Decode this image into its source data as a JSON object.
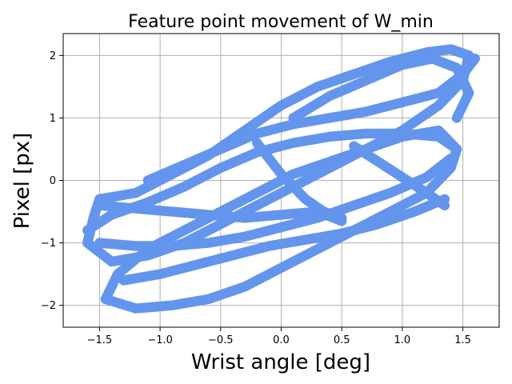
{
  "chart_data": {
    "type": "scatter",
    "title": "Feature point movement of W_min",
    "xlabel": "Wrist angle [deg]",
    "ylabel": "Pixel [px]",
    "xlim": [
      -1.8,
      1.8
    ],
    "ylim": [
      -2.35,
      2.35
    ],
    "x_ticks": [
      -1.5,
      -1.0,
      -0.5,
      0.0,
      0.5,
      1.0,
      1.5
    ],
    "x_tick_labels": [
      "−1.5",
      "−1.0",
      "−0.5",
      "0.0",
      "0.5",
      "1.0",
      "1.5"
    ],
    "y_ticks": [
      -2,
      -1,
      0,
      1,
      2
    ],
    "y_tick_labels": [
      "−2",
      "−1",
      "0",
      "1",
      "2"
    ],
    "grid": true,
    "marker_color": "#6495ED",
    "series": [
      {
        "values": [
          [
            -1.5,
            -0.3
          ],
          [
            -1.2,
            -0.2
          ],
          [
            -0.9,
            0.1
          ],
          [
            -0.6,
            0.4
          ],
          [
            -0.3,
            0.8
          ],
          [
            0.0,
            1.2
          ],
          [
            0.3,
            1.5
          ],
          [
            0.6,
            1.7
          ],
          [
            0.9,
            1.9
          ],
          [
            1.2,
            2.05
          ],
          [
            1.4,
            2.1
          ],
          [
            1.55,
            2.0
          ],
          [
            1.5,
            1.6
          ],
          [
            1.3,
            1.2
          ],
          [
            1.0,
            0.8
          ],
          [
            0.7,
            0.5
          ],
          [
            0.4,
            0.2
          ],
          [
            0.1,
            -0.1
          ],
          [
            -0.2,
            -0.4
          ],
          [
            -0.5,
            -0.7
          ],
          [
            -0.8,
            -1.0
          ],
          [
            -1.1,
            -1.2
          ],
          [
            -1.4,
            -1.3
          ],
          [
            -1.6,
            -1.0
          ],
          [
            -1.55,
            -0.6
          ],
          [
            -1.5,
            -0.3
          ]
        ]
      },
      {
        "values": [
          [
            -1.45,
            -1.9
          ],
          [
            -1.2,
            -2.05
          ],
          [
            -0.9,
            -2.0
          ],
          [
            -0.6,
            -1.9
          ],
          [
            -0.3,
            -1.7
          ],
          [
            0.0,
            -1.4
          ],
          [
            0.3,
            -1.1
          ],
          [
            0.6,
            -0.8
          ],
          [
            0.9,
            -0.5
          ],
          [
            1.2,
            -0.2
          ],
          [
            1.4,
            0.2
          ],
          [
            1.45,
            0.5
          ],
          [
            1.3,
            0.8
          ],
          [
            1.0,
            0.7
          ],
          [
            0.7,
            0.5
          ],
          [
            0.4,
            0.3
          ],
          [
            0.1,
            0.1
          ],
          [
            -0.2,
            -0.2
          ],
          [
            -0.5,
            -0.5
          ],
          [
            -0.8,
            -0.8
          ],
          [
            -1.1,
            -1.1
          ],
          [
            -1.35,
            -1.5
          ],
          [
            -1.45,
            -1.9
          ]
        ]
      },
      {
        "values": [
          [
            -1.6,
            -0.8
          ],
          [
            -1.4,
            -0.55
          ],
          [
            -1.1,
            -0.35
          ],
          [
            -0.8,
            -0.1
          ],
          [
            -0.5,
            0.2
          ],
          [
            -0.2,
            0.45
          ],
          [
            0.1,
            0.6
          ],
          [
            0.4,
            0.7
          ],
          [
            0.7,
            0.75
          ],
          [
            1.0,
            0.75
          ],
          [
            1.3,
            0.7
          ],
          [
            1.45,
            0.5
          ]
        ]
      },
      {
        "values": [
          [
            -1.5,
            -1.0
          ],
          [
            -1.2,
            -1.05
          ],
          [
            -0.9,
            -1.05
          ],
          [
            -0.6,
            -1.0
          ],
          [
            -0.3,
            -0.9
          ],
          [
            0.0,
            -0.75
          ],
          [
            0.3,
            -0.6
          ],
          [
            0.6,
            -0.4
          ],
          [
            0.9,
            -0.2
          ],
          [
            1.2,
            0.05
          ],
          [
            1.4,
            0.35
          ]
        ]
      },
      {
        "values": [
          [
            -1.5,
            -0.4
          ],
          [
            -1.2,
            -0.45
          ],
          [
            -0.9,
            -0.5
          ],
          [
            -0.6,
            -0.55
          ],
          [
            -0.3,
            -0.6
          ],
          [
            0.0,
            -0.55
          ],
          [
            0.3,
            -0.5
          ],
          [
            0.5,
            -0.65
          ]
        ]
      },
      {
        "values": [
          [
            -1.3,
            -1.6
          ],
          [
            -1.0,
            -1.5
          ],
          [
            -0.7,
            -1.35
          ],
          [
            -0.4,
            -1.2
          ],
          [
            -0.1,
            -1.05
          ],
          [
            0.2,
            -0.95
          ],
          [
            0.5,
            -0.85
          ],
          [
            0.8,
            -0.7
          ],
          [
            1.1,
            -0.5
          ],
          [
            1.35,
            -0.3
          ]
        ]
      },
      {
        "values": [
          [
            -0.2,
            0.6
          ],
          [
            0.0,
            0.1
          ],
          [
            0.2,
            -0.3
          ],
          [
            0.35,
            -0.5
          ],
          [
            0.5,
            -0.6
          ]
        ]
      },
      {
        "values": [
          [
            0.1,
            1.0
          ],
          [
            0.4,
            1.35
          ],
          [
            0.7,
            1.6
          ],
          [
            1.0,
            1.85
          ],
          [
            1.25,
            1.95
          ],
          [
            1.45,
            1.8
          ],
          [
            1.55,
            1.4
          ],
          [
            1.45,
            1.0
          ]
        ]
      },
      {
        "values": [
          [
            -1.1,
            0.0
          ],
          [
            -0.8,
            0.25
          ],
          [
            -0.5,
            0.5
          ],
          [
            -0.2,
            0.75
          ],
          [
            0.1,
            0.9
          ],
          [
            0.4,
            1.0
          ],
          [
            0.7,
            1.1
          ],
          [
            1.0,
            1.25
          ],
          [
            1.3,
            1.4
          ],
          [
            1.5,
            1.7
          ],
          [
            1.6,
            1.95
          ]
        ]
      },
      {
        "values": [
          [
            0.6,
            0.55
          ],
          [
            0.8,
            0.3
          ],
          [
            1.0,
            0.05
          ],
          [
            1.2,
            -0.2
          ],
          [
            1.35,
            -0.4
          ]
        ]
      }
    ]
  }
}
